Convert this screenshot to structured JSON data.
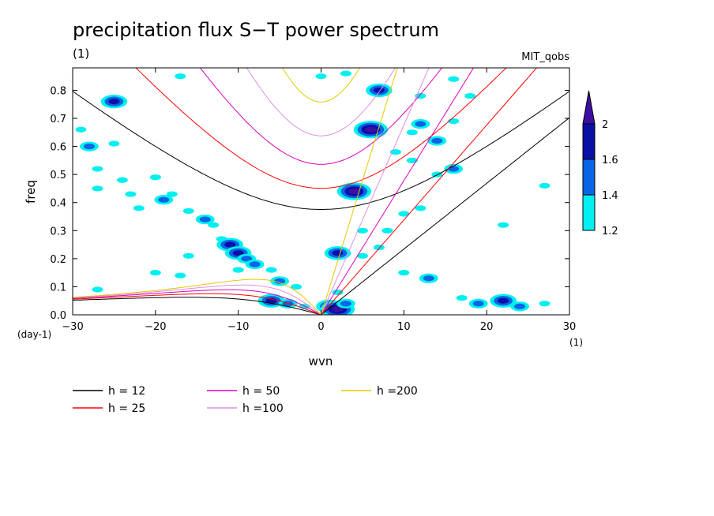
{
  "chart_data": {
    "type": "heatmap",
    "title": "precipitation flux S−T power spectrum",
    "subtitle_left": "(1)",
    "subtitle_right": "MIT_qobs",
    "xlabel": "wvn",
    "ylabel": "freq",
    "x_unit": "(1)",
    "y_unit": "(day-1)",
    "xlim": [
      -30,
      30
    ],
    "ylim": [
      0,
      0.88
    ],
    "x_ticks": [
      -30,
      -20,
      -10,
      0,
      10,
      20,
      30
    ],
    "x_tick_labels": [
      "−30",
      "−20",
      "−10",
      "0",
      "10",
      "20",
      "30"
    ],
    "y_ticks": [
      0,
      0.1,
      0.2,
      0.3,
      0.4,
      0.5,
      0.6,
      0.7,
      0.8
    ],
    "y_tick_labels": [
      "0.0",
      "0.1",
      "0.2",
      "0.3",
      "0.4",
      "0.5",
      "0.6",
      "0.7",
      "0.8"
    ],
    "colorbar": {
      "levels": [
        1.2,
        1.4,
        1.6,
        2
      ],
      "level_labels": [
        "1.2",
        "1.4",
        "1.6",
        "2"
      ],
      "colors": [
        "#00f0f0",
        "#0a64e6",
        "#0a10a6",
        "#3c0fa0"
      ]
    },
    "dispersion_curves": [
      {
        "label": "h = 12",
        "h": 12,
        "color": "#000000"
      },
      {
        "label": "h = 25",
        "h": 25,
        "color": "#ff0000"
      },
      {
        "label": "h = 50",
        "h": 50,
        "color": "#dd00bb"
      },
      {
        "label": "h =100",
        "h": 100,
        "color": "#dd90dd"
      },
      {
        "label": "h =200",
        "h": 200,
        "color": "#e6c800"
      }
    ],
    "contour_blobs": [
      {
        "x": -25,
        "y": 0.76,
        "level": 3
      },
      {
        "x": -29,
        "y": 0.66,
        "level": 1
      },
      {
        "x": -28,
        "y": 0.6,
        "level": 2
      },
      {
        "x": -25,
        "y": 0.61,
        "level": 1
      },
      {
        "x": -27,
        "y": 0.52,
        "level": 1
      },
      {
        "x": -24,
        "y": 0.48,
        "level": 1
      },
      {
        "x": -27,
        "y": 0.45,
        "level": 1
      },
      {
        "x": -23,
        "y": 0.43,
        "level": 1
      },
      {
        "x": -20,
        "y": 0.49,
        "level": 1
      },
      {
        "x": -22,
        "y": 0.38,
        "level": 1
      },
      {
        "x": -19,
        "y": 0.41,
        "level": 2
      },
      {
        "x": -18,
        "y": 0.43,
        "level": 1
      },
      {
        "x": -16,
        "y": 0.37,
        "level": 1
      },
      {
        "x": -14,
        "y": 0.34,
        "level": 2
      },
      {
        "x": -13,
        "y": 0.32,
        "level": 1
      },
      {
        "x": -12,
        "y": 0.27,
        "level": 1
      },
      {
        "x": -11,
        "y": 0.25,
        "level": 3
      },
      {
        "x": -10,
        "y": 0.22,
        "level": 3
      },
      {
        "x": -9,
        "y": 0.2,
        "level": 2
      },
      {
        "x": -8,
        "y": 0.18,
        "level": 2
      },
      {
        "x": -16,
        "y": 0.21,
        "level": 1
      },
      {
        "x": -17,
        "y": 0.14,
        "level": 1
      },
      {
        "x": -6,
        "y": 0.16,
        "level": 1
      },
      {
        "x": -5,
        "y": 0.12,
        "level": 2
      },
      {
        "x": -10,
        "y": 0.16,
        "level": 1
      },
      {
        "x": -3,
        "y": 0.1,
        "level": 1
      },
      {
        "x": -6,
        "y": 0.05,
        "level": 3
      },
      {
        "x": -4,
        "y": 0.04,
        "level": 2
      },
      {
        "x": -2,
        "y": 0.03,
        "level": 1
      },
      {
        "x": 1,
        "y": 0.03,
        "level": 3
      },
      {
        "x": 2,
        "y": 0.02,
        "level": 4
      },
      {
        "x": 3,
        "y": 0.04,
        "level": 2
      },
      {
        "x": 2,
        "y": 0.08,
        "level": 1
      },
      {
        "x": 4,
        "y": 0.44,
        "level": 4
      },
      {
        "x": 2,
        "y": 0.22,
        "level": 3
      },
      {
        "x": 5,
        "y": 0.21,
        "level": 1
      },
      {
        "x": 5,
        "y": 0.3,
        "level": 1
      },
      {
        "x": 6,
        "y": 0.66,
        "level": 4
      },
      {
        "x": 7,
        "y": 0.8,
        "level": 3
      },
      {
        "x": 9,
        "y": 0.58,
        "level": 1
      },
      {
        "x": 11,
        "y": 0.65,
        "level": 1
      },
      {
        "x": 11,
        "y": 0.55,
        "level": 1
      },
      {
        "x": 12,
        "y": 0.78,
        "level": 1
      },
      {
        "x": 12,
        "y": 0.68,
        "level": 2
      },
      {
        "x": 14,
        "y": 0.62,
        "level": 2
      },
      {
        "x": 16,
        "y": 0.69,
        "level": 1
      },
      {
        "x": 16,
        "y": 0.84,
        "level": 1
      },
      {
        "x": 18,
        "y": 0.78,
        "level": 1
      },
      {
        "x": 14,
        "y": 0.5,
        "level": 1
      },
      {
        "x": 16,
        "y": 0.52,
        "level": 2
      },
      {
        "x": 12,
        "y": 0.38,
        "level": 1
      },
      {
        "x": 10,
        "y": 0.36,
        "level": 1
      },
      {
        "x": 8,
        "y": 0.3,
        "level": 1
      },
      {
        "x": 7,
        "y": 0.24,
        "level": 1
      },
      {
        "x": 10,
        "y": 0.15,
        "level": 1
      },
      {
        "x": 13,
        "y": 0.13,
        "level": 2
      },
      {
        "x": 17,
        "y": 0.06,
        "level": 1
      },
      {
        "x": 19,
        "y": 0.04,
        "level": 2
      },
      {
        "x": 22,
        "y": 0.05,
        "level": 3
      },
      {
        "x": 24,
        "y": 0.03,
        "level": 2
      },
      {
        "x": 27,
        "y": 0.04,
        "level": 1
      },
      {
        "x": 22,
        "y": 0.32,
        "level": 1
      },
      {
        "x": 27,
        "y": 0.46,
        "level": 1
      },
      {
        "x": -27,
        "y": 0.09,
        "level": 1
      },
      {
        "x": -20,
        "y": 0.15,
        "level": 1
      },
      {
        "x": 0,
        "y": 0.85,
        "level": 1
      },
      {
        "x": 3,
        "y": 0.86,
        "level": 1
      },
      {
        "x": -17,
        "y": 0.85,
        "level": 1
      }
    ]
  }
}
